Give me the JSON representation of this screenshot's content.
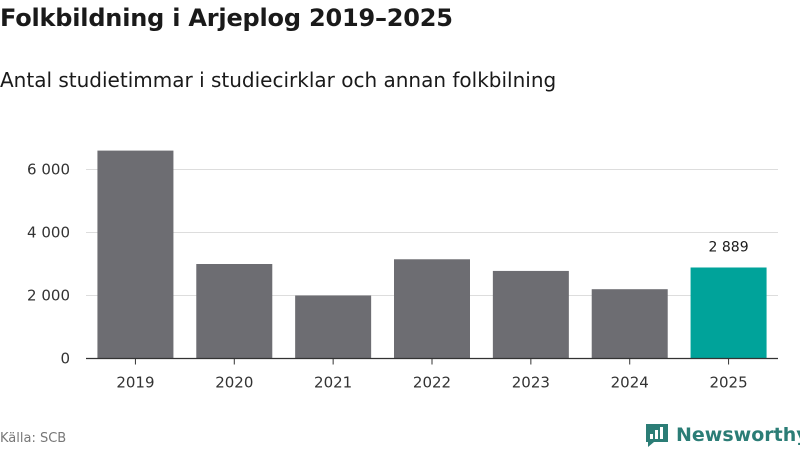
{
  "header": {
    "title": "Folkbildning i Arjeplog 2019–2025",
    "subtitle": "Antal studietimmar i studiecirklar och annan folkbilning"
  },
  "footer": {
    "source": "Källa: SCB",
    "brand": "Newsworthy"
  },
  "colors": {
    "bar": "#6d6d72",
    "highlight": "#00a39a",
    "grid": "#dddddd",
    "axis": "#333333",
    "brand": "#2b7d76"
  },
  "icons": {
    "logo": "newsworthy-chart-icon"
  },
  "chart_data": {
    "type": "bar",
    "title": "Folkbildning i Arjeplog 2019–2025",
    "subtitle": "Antal studietimmar i studiecirklar och annan folkbilning",
    "categories": [
      "2019",
      "2020",
      "2021",
      "2022",
      "2023",
      "2024",
      "2025"
    ],
    "values": [
      6600,
      3000,
      2000,
      3150,
      2780,
      2200,
      2889
    ],
    "highlight_index": 6,
    "data_labels": [
      {
        "index": 6,
        "text": "2 889"
      }
    ],
    "yticks": [
      0,
      2000,
      4000,
      6000
    ],
    "ytick_labels": [
      "0",
      "2 000",
      "4 000",
      "6 000"
    ],
    "ylim": [
      0,
      7000
    ],
    "grid": true,
    "xlabel": "",
    "ylabel": ""
  }
}
